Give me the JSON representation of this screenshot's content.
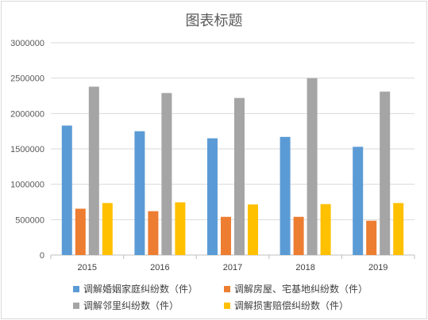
{
  "chart_data": {
    "type": "bar",
    "title": "图表标题",
    "categories": [
      "2015",
      "2016",
      "2017",
      "2018",
      "2019"
    ],
    "series": [
      {
        "name": "调解婚姻家庭纠纷数（件）",
        "color": "#5b9bd5",
        "values": [
          1830000,
          1750000,
          1650000,
          1670000,
          1530000
        ]
      },
      {
        "name": "调解房屋、宅基地纠纷数（件）",
        "color": "#ed7d31",
        "values": [
          655000,
          620000,
          540000,
          540000,
          485000
        ]
      },
      {
        "name": "调解邻里纠纷数（件）",
        "color": "#a5a5a5",
        "values": [
          2380000,
          2290000,
          2220000,
          2500000,
          2310000
        ]
      },
      {
        "name": "调解损害赔偿纠纷数（件）",
        "color": "#ffc000",
        "values": [
          735000,
          745000,
          715000,
          720000,
          735000
        ]
      }
    ],
    "y_ticks": [
      "0",
      "500000",
      "1000000",
      "1500000",
      "2000000",
      "2500000",
      "3000000"
    ],
    "ylim": [
      0,
      3000000
    ],
    "grid": true,
    "legend_position": "bottom"
  }
}
